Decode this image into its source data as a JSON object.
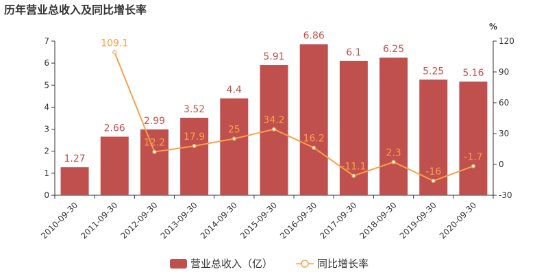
{
  "chart_data": {
    "type": "bar",
    "title": "历年营业总收入及同比增长率",
    "categories": [
      "2010-09-30",
      "2011-09-30",
      "2012-09-30",
      "2013-09-30",
      "2014-09-30",
      "2015-09-30",
      "2016-09-30",
      "2017-09-30",
      "2018-09-30",
      "2019-09-30",
      "2020-09-30"
    ],
    "series": [
      {
        "name": "营业总收入（亿）",
        "type": "bar",
        "axis": "left",
        "color": "#c0504d",
        "values": [
          1.27,
          2.66,
          2.99,
          3.52,
          4.4,
          5.91,
          6.86,
          6.1,
          6.25,
          5.25,
          5.16
        ],
        "labels": [
          "1.27",
          "2.66",
          "2.99",
          "3.52",
          "4.4",
          "5.91",
          "6.86",
          "6.1",
          "6.25",
          "5.25",
          "5.16"
        ]
      },
      {
        "name": "同比增长率",
        "type": "line",
        "axis": "right",
        "color": "#f7a04b",
        "values": [
          null,
          109.1,
          12.2,
          17.9,
          25,
          34.2,
          16.2,
          -11.1,
          2.3,
          -16,
          -1.7
        ],
        "labels": [
          "",
          "109.1",
          "12.2",
          "17.9",
          "25",
          "34.2",
          "16.2",
          "-11.1",
          "2.3",
          "-16",
          "-1.7"
        ]
      }
    ],
    "y_left": {
      "min": 0,
      "max": 7,
      "ticks": [
        "0",
        "1",
        "2",
        "3",
        "4",
        "5",
        "6",
        "7"
      ]
    },
    "y_right": {
      "label": "%",
      "min": -30,
      "max": 120,
      "ticks": [
        "-30",
        "0",
        "30",
        "60",
        "90",
        "120"
      ]
    },
    "grid": false,
    "legend_position": "bottom-center"
  }
}
